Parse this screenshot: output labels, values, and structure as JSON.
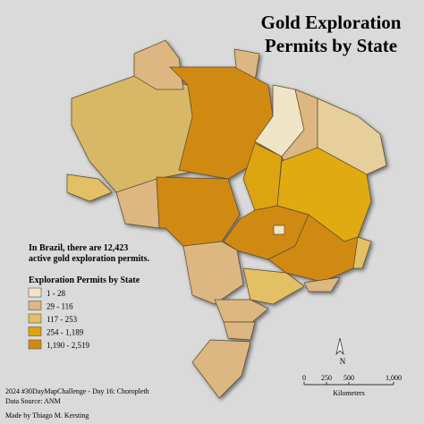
{
  "title": [
    "Gold Exploration",
    "Permits by State"
  ],
  "annotation": [
    "In Brazil, there are 12,423",
    "active gold exploration permits."
  ],
  "legend": {
    "title": "Exploration Permits by State",
    "items": [
      {
        "label": "1 - 28",
        "color": "#efe4c6"
      },
      {
        "label": "29 - 116",
        "color": "#dcb782"
      },
      {
        "label": "117 - 253",
        "color": "#e3c064"
      },
      {
        "label": "254 - 1,189",
        "color": "#dca40e"
      },
      {
        "label": "1,190 - 2,519",
        "color": "#d08a12"
      }
    ]
  },
  "scale_bar": {
    "ticks": [
      "0",
      "250",
      "500",
      "1,000"
    ],
    "unit": "Kilometers"
  },
  "north_arrow": "N",
  "credits": [
    "2024 #30DayMapChallenge - Day 16: Choropleth",
    "Data Source: ANM",
    "Made by Thiago M. Kersting"
  ]
}
